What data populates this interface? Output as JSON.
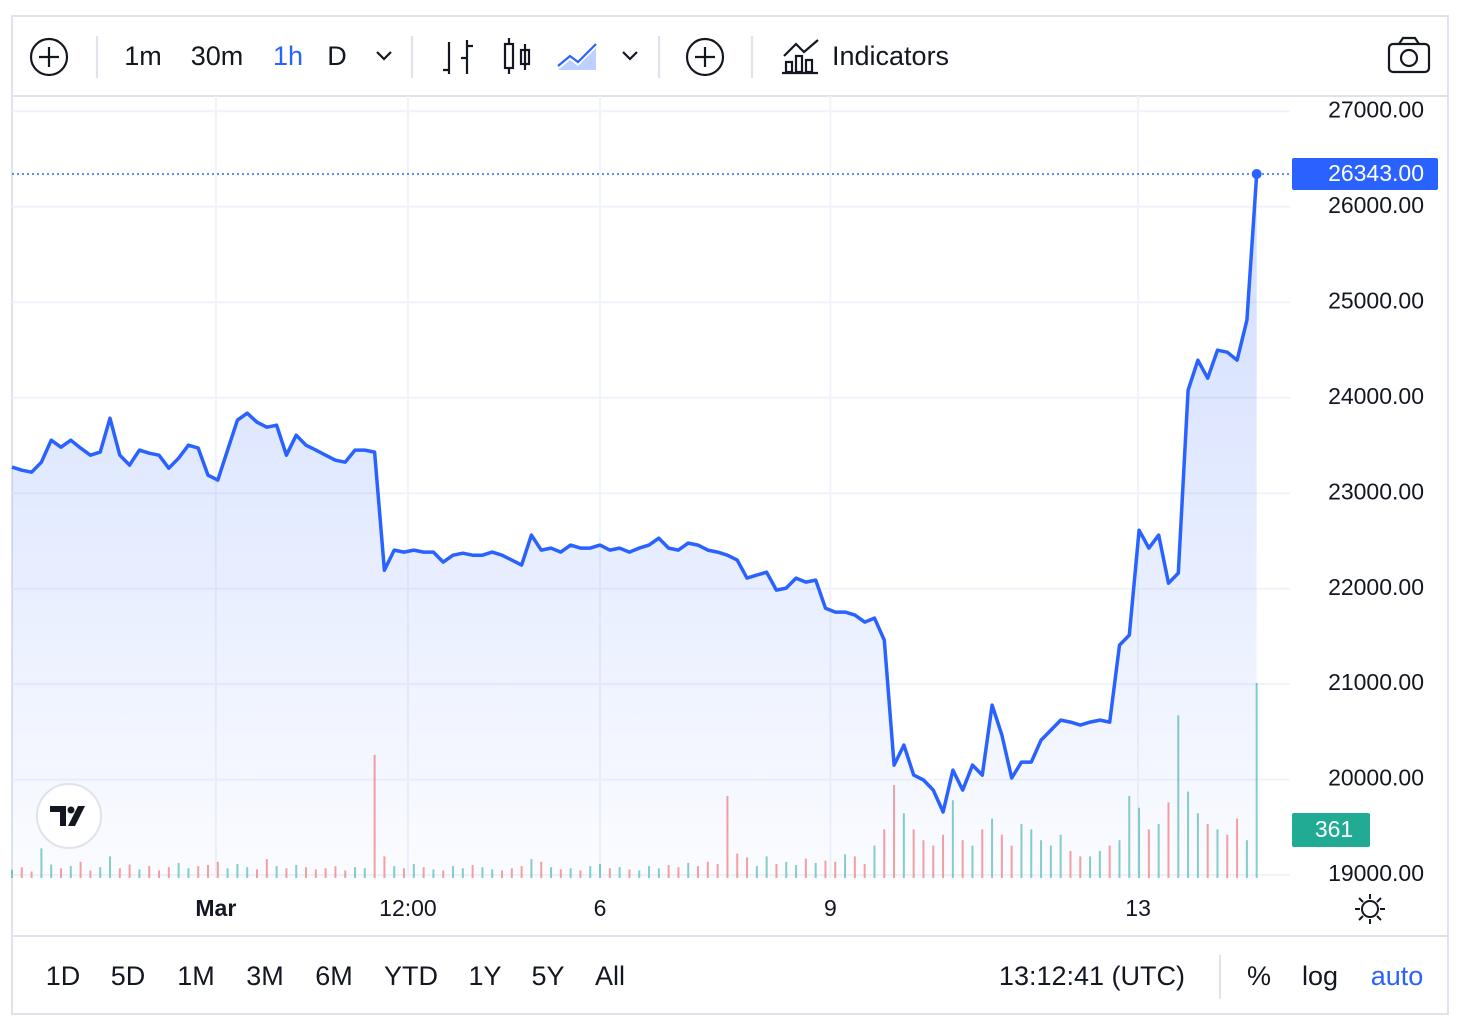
{
  "toolbar": {
    "intervals": [
      "1m",
      "30m",
      "1h",
      "D"
    ],
    "active_interval": 2,
    "indicators": "Indicators"
  },
  "footer": {
    "ranges": [
      "1D",
      "5D",
      "1M",
      "3M",
      "6M",
      "YTD",
      "1Y",
      "5Y",
      "All"
    ],
    "time": "13:12:41 (UTC)",
    "percent": "%",
    "log": "log",
    "auto": "auto",
    "auto_active": true
  },
  "chart_data": {
    "type": "area",
    "color": "#2962ff",
    "log_scale": false,
    "grid": true,
    "series": [
      {
        "values": [
          23273,
          23241,
          23220,
          23325,
          23555,
          23482,
          23555,
          23472,
          23398,
          23430,
          23786,
          23398,
          23294,
          23451,
          23419,
          23398,
          23262,
          23367,
          23503,
          23472,
          23189,
          23137,
          23451,
          23765,
          23838,
          23744,
          23691,
          23712,
          23398,
          23608,
          23503,
          23451,
          23398,
          23346,
          23325,
          23451,
          23451,
          23430,
          22194,
          22404,
          22383,
          22404,
          22383,
          22383,
          22278,
          22351,
          22372,
          22351,
          22351,
          22383,
          22351,
          22299,
          22247,
          22561,
          22404,
          22425,
          22383,
          22456,
          22425,
          22425,
          22456,
          22404,
          22425,
          22383,
          22425,
          22456,
          22529,
          22425,
          22404,
          22477,
          22456,
          22404,
          22383,
          22351,
          22299,
          22111,
          22142,
          22173,
          21985,
          22006,
          22111,
          22069,
          22090,
          21796,
          21755,
          21755,
          21723,
          21650,
          21692,
          21461,
          20152,
          20362,
          20048,
          19996,
          19891,
          19661,
          20100,
          19891,
          20152,
          20048,
          20781,
          20467,
          20017,
          20184,
          20184,
          20414,
          20519,
          20624,
          20603,
          20571,
          20603,
          20624,
          20603,
          21409,
          21514,
          22613,
          22425,
          22561,
          22058,
          22163,
          24079,
          24393,
          24205,
          24498,
          24477,
          24393,
          24812,
          26343
        ],
        "last_value_label": "26343.00"
      }
    ],
    "volume": {
      "up_color": "#26a69a",
      "down_color": "#ef5350",
      "label_color": "#22ab94",
      "values": [
        15,
        20,
        12,
        55,
        25,
        18,
        22,
        30,
        14,
        20,
        40,
        18,
        25,
        16,
        22,
        14,
        20,
        28,
        18,
        22,
        24,
        30,
        18,
        26,
        20,
        16,
        35,
        22,
        18,
        24,
        20,
        16,
        18,
        22,
        14,
        20,
        18,
        228,
        40,
        22,
        18,
        26,
        20,
        16,
        14,
        22,
        18,
        24,
        20,
        16,
        14,
        18,
        22,
        35,
        30,
        20,
        16,
        18,
        14,
        22,
        26,
        18,
        20,
        16,
        14,
        22,
        18,
        24,
        20,
        28,
        22,
        30,
        26,
        152,
        45,
        38,
        22,
        40,
        26,
        30,
        24,
        36,
        28,
        32,
        30,
        44,
        40,
        26,
        60,
        90,
        172,
        120,
        90,
        70,
        60,
        80,
        144,
        70,
        60,
        90,
        110,
        80,
        60,
        100,
        90,
        70,
        60,
        80,
        50,
        40,
        40,
        50,
        60,
        70,
        152,
        130,
        90,
        100,
        140,
        301,
        160,
        120,
        100,
        90,
        80,
        110,
        70,
        361
      ]
    },
    "xlim": [
      0,
      130.4
    ],
    "xticks": [
      {
        "value": 20.8,
        "label": "Mar"
      },
      {
        "value": 40.4,
        "label": "12:00"
      },
      {
        "value": 60.0,
        "label": "6"
      },
      {
        "value": 83.5,
        "label": "9"
      },
      {
        "value": 114.9,
        "label": "13"
      }
    ],
    "ylim": [
      18970,
      27160
    ],
    "yticks": [
      {
        "value": 19000,
        "label": "19000.00"
      },
      {
        "value": 20000,
        "label": "20000.00"
      },
      {
        "value": 21000,
        "label": "21000.00"
      },
      {
        "value": 22000,
        "label": "22000.00"
      },
      {
        "value": 23000,
        "label": "23000.00"
      },
      {
        "value": 24000,
        "label": "24000.00"
      },
      {
        "value": 25000,
        "label": "25000.00"
      },
      {
        "value": 26000,
        "label": "26000.00"
      },
      {
        "value": 27000,
        "label": "27000.00"
      }
    ]
  }
}
